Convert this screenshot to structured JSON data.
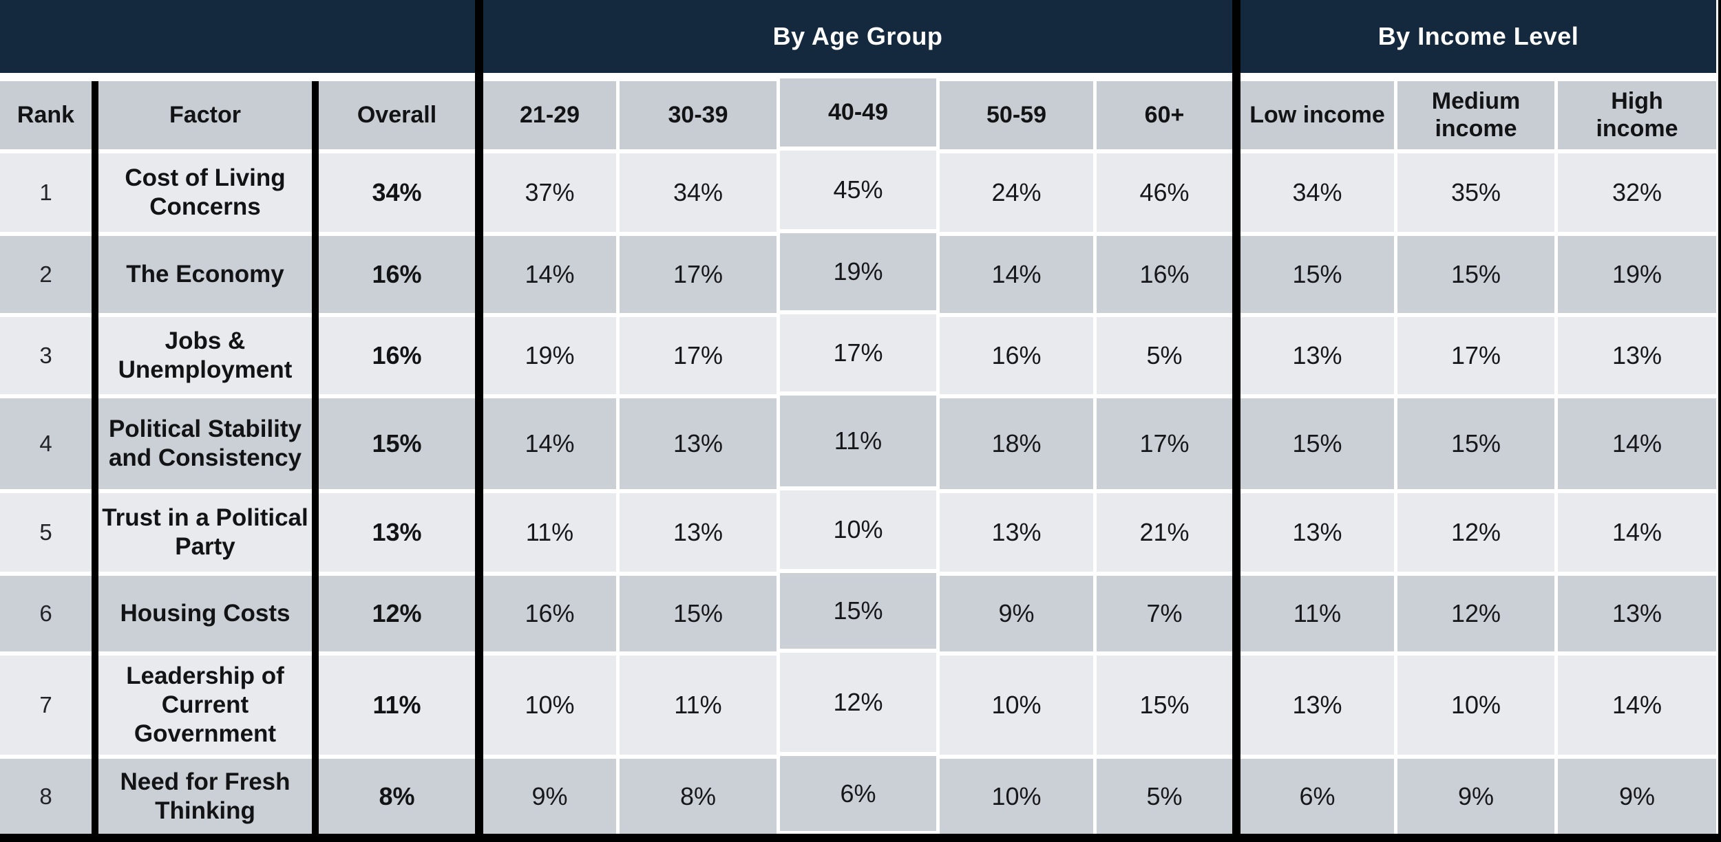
{
  "band": {
    "age_group_label": "By Age Group",
    "income_level_label": "By Income Level"
  },
  "headers": {
    "rank": "Rank",
    "factor": "Factor",
    "overall": "Overall",
    "age": [
      "21-29",
      "30-39",
      "40-49",
      "50-59",
      "60+"
    ],
    "income": [
      "Low income",
      "Medium\nincome",
      "High\nincome"
    ]
  },
  "chart_data": {
    "type": "table",
    "column_groups": [
      {
        "label": "By Age Group",
        "columns": [
          "21-29",
          "30-39",
          "40-49",
          "50-59",
          "60+"
        ]
      },
      {
        "label": "By Income Level",
        "columns": [
          "Low income",
          "Medium income",
          "High income"
        ]
      }
    ],
    "columns": [
      "Rank",
      "Factor",
      "Overall",
      "21-29",
      "30-39",
      "40-49",
      "50-59",
      "60+",
      "Low income",
      "Medium income",
      "High income"
    ],
    "rows": [
      [
        "1",
        "Cost of Living Concerns",
        "34%",
        "37%",
        "34%",
        "45%",
        "24%",
        "46%",
        "34%",
        "35%",
        "32%"
      ],
      [
        "2",
        "The Economy",
        "16%",
        "14%",
        "17%",
        "19%",
        "14%",
        "16%",
        "15%",
        "15%",
        "19%"
      ],
      [
        "3",
        "Jobs & Unemployment",
        "16%",
        "19%",
        "17%",
        "17%",
        "16%",
        "5%",
        "13%",
        "17%",
        "13%"
      ],
      [
        "4",
        "Political Stability and Consistency",
        "15%",
        "14%",
        "13%",
        "11%",
        "18%",
        "17%",
        "15%",
        "15%",
        "14%"
      ],
      [
        "5",
        "Trust in a Political Party",
        "13%",
        "11%",
        "13%",
        "10%",
        "13%",
        "21%",
        "13%",
        "12%",
        "14%"
      ],
      [
        "6",
        "Housing Costs",
        "12%",
        "16%",
        "15%",
        "15%",
        "9%",
        "7%",
        "11%",
        "12%",
        "13%"
      ],
      [
        "7",
        "Leadership of Current Government",
        "11%",
        "10%",
        "11%",
        "12%",
        "10%",
        "15%",
        "13%",
        "10%",
        "14%"
      ],
      [
        "8",
        "Need for Fresh Thinking",
        "8%",
        "9%",
        "8%",
        "6%",
        "10%",
        "5%",
        "6%",
        "9%",
        "9%"
      ]
    ]
  },
  "colors": {
    "navy_band": "#15293E",
    "header_gray": "#C8CCD3",
    "row_light": "#E8EAED",
    "row_dark": "#CBCFD6",
    "rule_black": "#000000",
    "band_text": "#FFFFFF",
    "cell_text": "#16171A"
  }
}
